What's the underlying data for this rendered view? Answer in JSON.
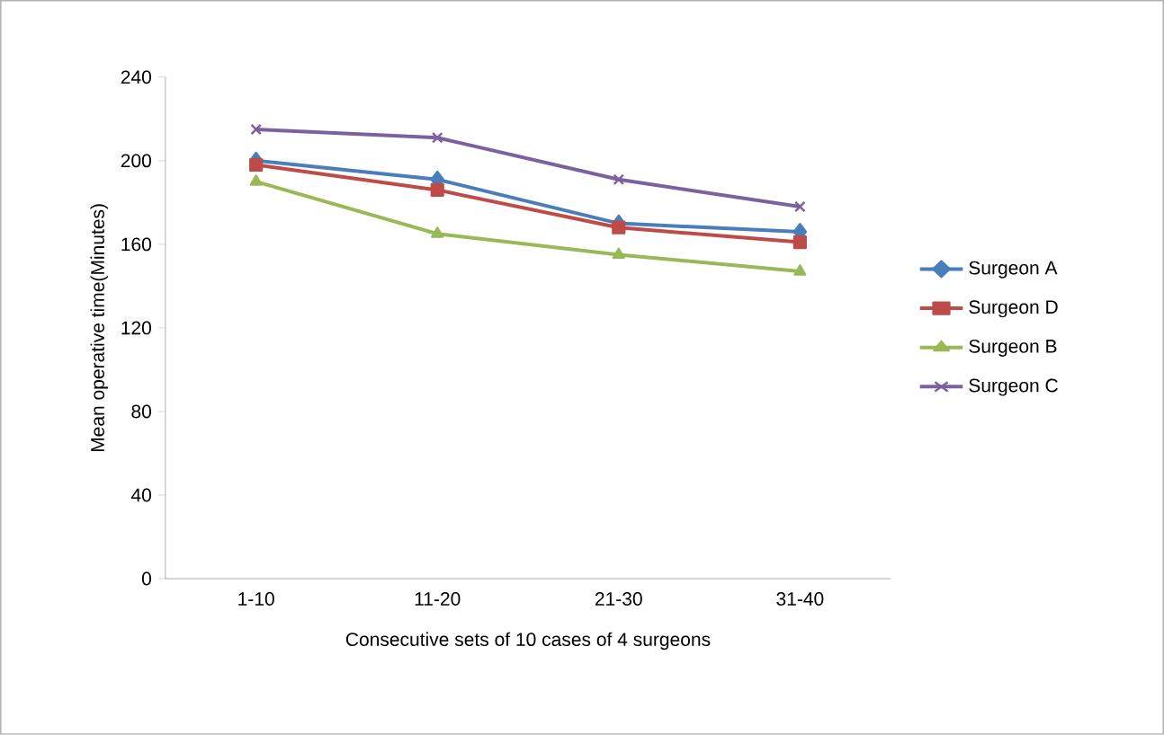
{
  "chart_data": {
    "type": "line",
    "xlabel": "Consecutive sets of 10 cases of 4 surgeons",
    "ylabel": "Mean operative time(Minutes)",
    "categories": [
      "1-10",
      "11-20",
      "21-30",
      "31-40"
    ],
    "ylim": [
      0,
      240
    ],
    "yticks": [
      0,
      40,
      80,
      120,
      160,
      200,
      240
    ],
    "grid": false,
    "legend": "right",
    "series": [
      {
        "name": "Surgeon A",
        "color": "#4a7ebb",
        "marker": "diamond",
        "values": [
          200,
          191,
          170,
          166
        ]
      },
      {
        "name": "Surgeon D",
        "color": "#be4b48",
        "marker": "square",
        "values": [
          198,
          186,
          168,
          161
        ]
      },
      {
        "name": "Surgeon B",
        "color": "#98b954",
        "marker": "triangle",
        "values": [
          190,
          165,
          155,
          147
        ]
      },
      {
        "name": "Surgeon C",
        "color": "#7d60a0",
        "marker": "cross",
        "values": [
          215,
          211,
          191,
          178
        ]
      }
    ]
  }
}
